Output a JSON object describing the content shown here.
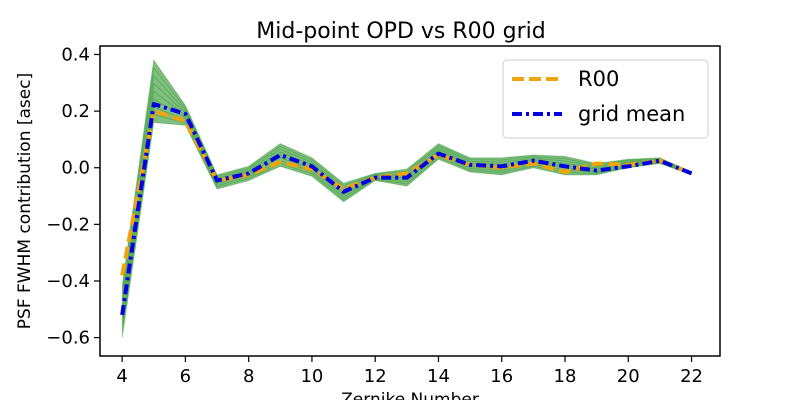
{
  "chart_data": {
    "type": "line",
    "title": "Mid-point OPD vs R00 grid",
    "xlabel": "Zernike Number",
    "ylabel": "PSF FWHM contribution [asec]",
    "xlim": [
      3.3,
      22.9
    ],
    "ylim": [
      -0.665,
      0.43
    ],
    "xticks": [
      4,
      6,
      8,
      10,
      12,
      14,
      16,
      18,
      20,
      22
    ],
    "yticks": [
      -0.6,
      -0.4,
      -0.2,
      0.0,
      0.2,
      0.4
    ],
    "ytick_labels": [
      "−0.6",
      "−0.4",
      "−0.2",
      "0.0",
      "0.2",
      "0.4"
    ],
    "grid": false,
    "legend_position": "top-right",
    "x": [
      4,
      5,
      6,
      7,
      8,
      9,
      10,
      11,
      12,
      13,
      14,
      15,
      16,
      17,
      18,
      19,
      20,
      21,
      22
    ],
    "series": [
      {
        "name": "R00",
        "style": "dashed",
        "color": "#f0a30a",
        "values": [
          -0.38,
          0.2,
          0.165,
          -0.045,
          -0.025,
          0.02,
          -0.005,
          -0.075,
          -0.035,
          -0.02,
          0.045,
          0.01,
          0.0,
          0.015,
          -0.015,
          0.015,
          0.01,
          0.025,
          -0.02
        ]
      },
      {
        "name": "grid mean",
        "style": "dashdot",
        "color": "#0000e6",
        "values": [
          -0.52,
          0.225,
          0.19,
          -0.045,
          -0.02,
          0.045,
          0.005,
          -0.085,
          -0.035,
          -0.035,
          0.05,
          0.01,
          0.005,
          0.025,
          0.005,
          -0.01,
          0.005,
          0.025,
          -0.02
        ]
      }
    ],
    "band_color": "#1a8a1a",
    "band_low": [
      -0.6,
      0.16,
      0.15,
      -0.075,
      -0.045,
      0.005,
      -0.03,
      -0.12,
      -0.045,
      -0.065,
      0.03,
      -0.015,
      -0.025,
      0.0,
      -0.025,
      -0.025,
      0.0,
      0.015,
      -0.025
    ],
    "band_high": [
      -0.42,
      0.38,
      0.22,
      -0.025,
      0.005,
      0.085,
      0.035,
      -0.055,
      -0.02,
      -0.005,
      0.085,
      0.035,
      0.035,
      0.045,
      0.04,
      0.015,
      0.03,
      0.035,
      -0.015
    ]
  }
}
